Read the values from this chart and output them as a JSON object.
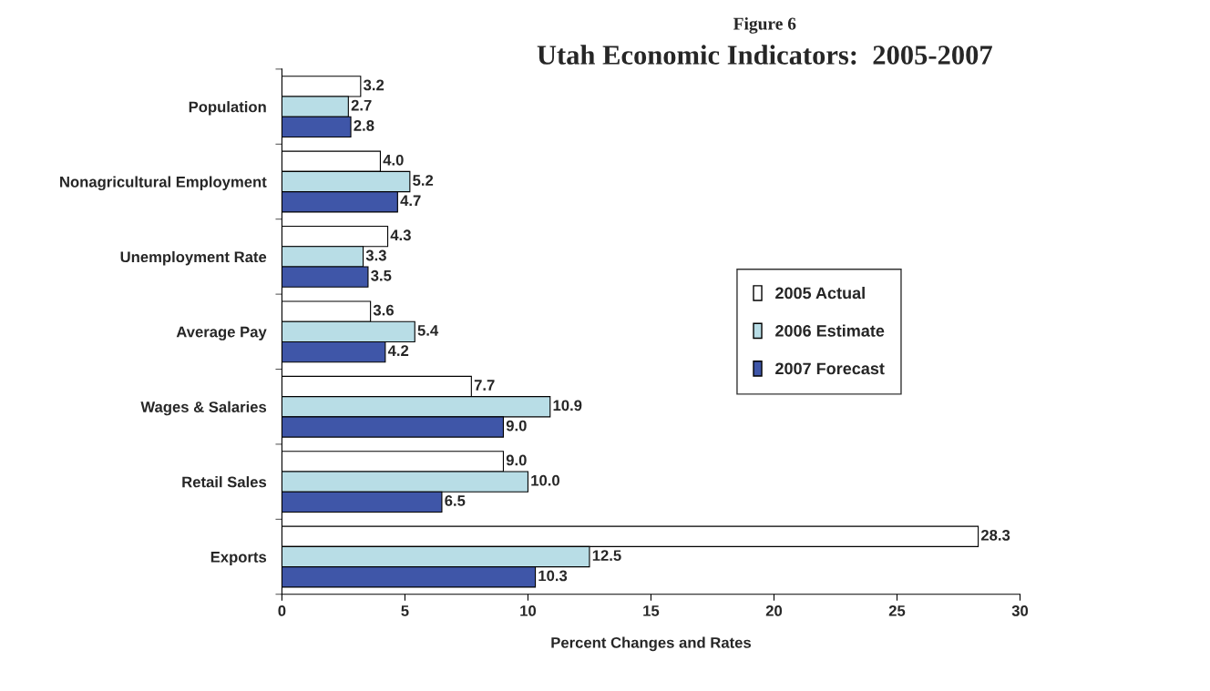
{
  "chart_data": {
    "type": "bar",
    "orientation": "horizontal",
    "subtitle": "Figure 6",
    "title": "Utah Economic Indicators:  2005-2007",
    "xlabel": "Percent Changes and Rates",
    "categories": [
      "Population",
      "Nonagricultural Employment",
      "Unemployment Rate",
      "Average Pay",
      "Wages & Salaries",
      "Retail Sales",
      "Exports"
    ],
    "series": [
      {
        "name": "2005 Actual",
        "color": "#ffffff",
        "values": [
          3.2,
          4.0,
          4.3,
          3.6,
          7.7,
          9.0,
          28.3
        ],
        "value_labels": [
          "3.2",
          "4.0",
          "4.3",
          "3.6",
          "7.7",
          "9.0",
          "28.3"
        ]
      },
      {
        "name": "2006 Estimate",
        "color": "#b8dde6",
        "values": [
          2.7,
          5.2,
          3.3,
          5.4,
          10.9,
          10.0,
          12.5
        ],
        "value_labels": [
          "2.7",
          "5.2",
          "3.3",
          "5.4",
          "10.9",
          "10.0",
          "12.5"
        ]
      },
      {
        "name": "2007 Forecast",
        "color": "#3f56a8",
        "values": [
          2.8,
          4.7,
          3.5,
          4.2,
          9.0,
          6.5,
          10.3
        ],
        "value_labels": [
          "2.8",
          "4.7",
          "3.5",
          "4.2",
          "9.0",
          "6.5",
          "10.3"
        ]
      }
    ],
    "xlim": [
      0,
      30
    ],
    "xticks": [
      0,
      5,
      10,
      15,
      20,
      25,
      30
    ],
    "legend": "right",
    "grid": false
  }
}
